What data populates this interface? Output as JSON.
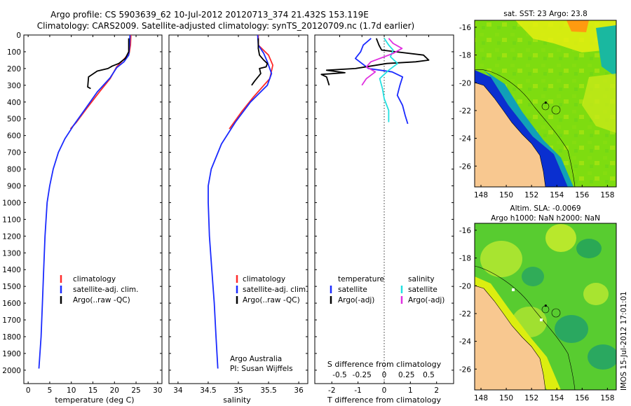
{
  "header": {
    "line1": "Argo profile: CS 5903639_62 10-Jul-2012 20120713_374 21.432S 153.119E",
    "line2": "Climatology: CARS2009. Satellite-adjusted climatology: synTS_20120709.nc (1.7d earlier)"
  },
  "side_label": "IMOS 15-Jul-2012 17:01:01",
  "chart_data": [
    {
      "type": "line",
      "name": "temperature-profile",
      "xlabel": "temperature (deg C)",
      "xlim": [
        -1,
        31
      ],
      "ylim": [
        2080,
        0
      ],
      "xticks": [
        0,
        5,
        10,
        15,
        20,
        25,
        30
      ],
      "yticks": [
        0,
        100,
        200,
        300,
        400,
        500,
        600,
        700,
        800,
        900,
        1000,
        1100,
        1200,
        1300,
        1400,
        1500,
        1600,
        1700,
        1800,
        1900,
        2000
      ],
      "series": [
        {
          "name": "climatology",
          "color": "#ff2a2a",
          "points": [
            [
              23.8,
              0
            ],
            [
              23.7,
              60
            ],
            [
              23.4,
              110
            ],
            [
              22.0,
              150
            ],
            [
              20.5,
              190
            ],
            [
              19.0,
              260
            ],
            [
              16.5,
              340
            ],
            [
              13.8,
              430
            ],
            [
              11.2,
              520
            ],
            [
              9.8,
              560
            ]
          ]
        },
        {
          "name": "satellite-adj. clim.",
          "color": "#1a2aff",
          "points": [
            [
              23.6,
              0
            ],
            [
              23.5,
              60
            ],
            [
              23.3,
              120
            ],
            [
              22.2,
              160
            ],
            [
              20.5,
              195
            ],
            [
              19.0,
              255
            ],
            [
              16.0,
              340
            ],
            [
              13.0,
              450
            ],
            [
              10.5,
              540
            ],
            [
              8.5,
              620
            ],
            [
              7.0,
              700
            ],
            [
              5.8,
              800
            ],
            [
              5.0,
              900
            ],
            [
              4.4,
              1000
            ],
            [
              3.9,
              1200
            ],
            [
              3.6,
              1400
            ],
            [
              3.3,
              1600
            ],
            [
              3.0,
              1800
            ],
            [
              2.5,
              1990
            ]
          ]
        },
        {
          "name": "Argo(..raw -QC)",
          "color": "#000000",
          "points": [
            [
              23.3,
              20
            ],
            [
              23.3,
              100
            ],
            [
              22.5,
              140
            ],
            [
              21.0,
              170
            ],
            [
              19.5,
              185
            ],
            [
              18.5,
              200
            ],
            [
              16.0,
              215
            ],
            [
              14.0,
              250
            ],
            [
              13.8,
              310
            ],
            [
              14.5,
              320
            ]
          ]
        }
      ],
      "legend": [
        "climatology",
        "satellite-adj. clim.",
        "Argo(..raw -QC)"
      ]
    },
    {
      "type": "line",
      "name": "salinity-profile",
      "xlabel": "salinity",
      "xlim": [
        33.85,
        36.15
      ],
      "ylim": [
        2080,
        0
      ],
      "xticks": [
        34,
        34.5,
        35,
        35.5,
        36
      ],
      "xtick_labels": [
        "34",
        "34.5",
        "35",
        "35.5",
        "36"
      ],
      "series": [
        {
          "name": "climatology",
          "color": "#ff2a2a",
          "points": [
            [
              35.33,
              0
            ],
            [
              35.33,
              60
            ],
            [
              35.5,
              120
            ],
            [
              35.57,
              180
            ],
            [
              35.52,
              260
            ],
            [
              35.25,
              370
            ],
            [
              35.05,
              460
            ],
            [
              34.85,
              560
            ]
          ]
        },
        {
          "name": "satellite-adj. clim.",
          "color": "#1a2aff",
          "points": [
            [
              35.32,
              0
            ],
            [
              35.33,
              60
            ],
            [
              35.42,
              110
            ],
            [
              35.48,
              160
            ],
            [
              35.55,
              230
            ],
            [
              35.48,
              300
            ],
            [
              35.2,
              400
            ],
            [
              34.95,
              520
            ],
            [
              34.72,
              650
            ],
            [
              34.55,
              800
            ],
            [
              34.5,
              900
            ],
            [
              34.5,
              1000
            ],
            [
              34.52,
              1200
            ],
            [
              34.56,
              1400
            ],
            [
              34.6,
              1600
            ],
            [
              34.63,
              1800
            ],
            [
              34.66,
              1990
            ]
          ]
        },
        {
          "name": "Argo(..raw -QC)",
          "color": "#000000",
          "points": [
            [
              35.33,
              20
            ],
            [
              35.33,
              80
            ],
            [
              35.35,
              120
            ],
            [
              35.42,
              150
            ],
            [
              35.48,
              170
            ],
            [
              35.46,
              190
            ],
            [
              35.35,
              200
            ],
            [
              35.37,
              230
            ],
            [
              35.27,
              275
            ],
            [
              35.22,
              300
            ]
          ]
        }
      ],
      "legend": [
        "climatology",
        "satellite-adj. clim.",
        "Argo(..raw -QC)"
      ],
      "credit1": "Argo Australia",
      "credit2": "PI: Susan Wijffels"
    },
    {
      "type": "line",
      "name": "difference-profile",
      "top_axis_label": "S difference from climatology",
      "top_ticks": [
        "-0.5",
        "-0.25",
        "0",
        "0.25",
        "0.5"
      ],
      "top_tick_values": [
        -0.5,
        -0.25,
        0,
        0.25,
        0.5
      ],
      "bottom_axis_label": "T difference from climatology",
      "bottom_ticks": [
        "-2",
        "-1",
        "0",
        "1",
        "2"
      ],
      "bottom_tick_values": [
        -2,
        -1,
        0,
        1,
        2
      ],
      "xlim": [
        -2.65,
        2.65
      ],
      "series": [
        {
          "name": "temperature satellite",
          "quantity": "T",
          "color": "#1a2aff",
          "points": [
            [
              -0.5,
              20
            ],
            [
              -0.8,
              60
            ],
            [
              -0.9,
              100
            ],
            [
              -1.1,
              140
            ],
            [
              -0.6,
              200
            ],
            [
              0.3,
              220
            ],
            [
              0.7,
              250
            ],
            [
              0.6,
              300
            ],
            [
              0.5,
              360
            ],
            [
              0.7,
              420
            ],
            [
              0.8,
              480
            ],
            [
              0.9,
              530
            ]
          ]
        },
        {
          "name": "temperature Argo(-adj)",
          "quantity": "T",
          "color": "#000000",
          "points": [
            [
              -0.3,
              20
            ],
            [
              -0.2,
              60
            ],
            [
              -0.1,
              90
            ],
            [
              1.5,
              120
            ],
            [
              1.7,
              150
            ],
            [
              1.2,
              160
            ],
            [
              0.1,
              170
            ],
            [
              -0.5,
              185
            ],
            [
              -1.1,
              200
            ],
            [
              -2.2,
              210
            ],
            [
              -1.5,
              225
            ],
            [
              -2.4,
              235
            ],
            [
              -2.2,
              250
            ],
            [
              -2.1,
              300
            ]
          ]
        },
        {
          "name": "salinity satellite",
          "quantity": "S",
          "color": "#22e0e0",
          "points": [
            [
              0.0,
              20
            ],
            [
              0.05,
              60
            ],
            [
              0.1,
              90
            ],
            [
              0.07,
              130
            ],
            [
              0.15,
              170
            ],
            [
              0.05,
              210
            ],
            [
              -0.05,
              260
            ],
            [
              -0.02,
              320
            ],
            [
              0.0,
              380
            ],
            [
              0.05,
              450
            ],
            [
              0.05,
              520
            ]
          ]
        },
        {
          "name": "salinity Argo(-adj)",
          "quantity": "S",
          "color": "#e030e0",
          "points": [
            [
              0.05,
              20
            ],
            [
              0.1,
              50
            ],
            [
              0.2,
              80
            ],
            [
              0.1,
              110
            ],
            [
              0.0,
              130
            ],
            [
              -0.15,
              160
            ],
            [
              -0.2,
              190
            ],
            [
              -0.1,
              220
            ],
            [
              -0.2,
              260
            ],
            [
              -0.25,
              300
            ]
          ]
        }
      ],
      "legend_temperature_title": "temperature",
      "legend_salinity_title": "salinity",
      "legend_items": [
        {
          "label": "satellite",
          "color": "#1a2aff"
        },
        {
          "label": "Argo(-adj)",
          "color": "#000000"
        },
        {
          "label": "satellite",
          "color": "#22e0e0"
        },
        {
          "label": "Argo(-adj)",
          "color": "#e030e0"
        }
      ]
    },
    {
      "type": "heatmap",
      "name": "sst-map",
      "title": "sat. SST: 23 Argo: 23.8",
      "xticks": [
        "148",
        "150",
        "152",
        "154",
        "156",
        "158"
      ],
      "xtick_values": [
        148,
        150,
        152,
        154,
        156,
        158
      ],
      "yticks": [
        "-16",
        "-18",
        "-20",
        "-22",
        "-24",
        "-26"
      ],
      "ytick_values": [
        -16,
        -18,
        -20,
        -22,
        -24,
        -26
      ],
      "xlim": [
        147.5,
        158.7
      ],
      "ylim": [
        -27.5,
        -15.5
      ],
      "argo_position": [
        153.119,
        -21.432
      ]
    },
    {
      "type": "heatmap",
      "name": "sla-map",
      "title1": "Altim. SLA: -0.0069",
      "title2": "Argo h1000: NaN h2000: NaN",
      "xticks": [
        "148",
        "150",
        "152",
        "154",
        "156",
        "158"
      ],
      "xtick_values": [
        148,
        150,
        152,
        154,
        156,
        158
      ],
      "yticks": [
        "-16",
        "-18",
        "-20",
        "-22",
        "-24",
        "-26"
      ],
      "ytick_values": [
        -16,
        -18,
        -20,
        -22,
        -24,
        -26
      ],
      "xlim": [
        147.5,
        158.7
      ],
      "ylim": [
        -27.5,
        -15.5
      ],
      "argo_position": [
        153.119,
        -21.432
      ]
    }
  ]
}
